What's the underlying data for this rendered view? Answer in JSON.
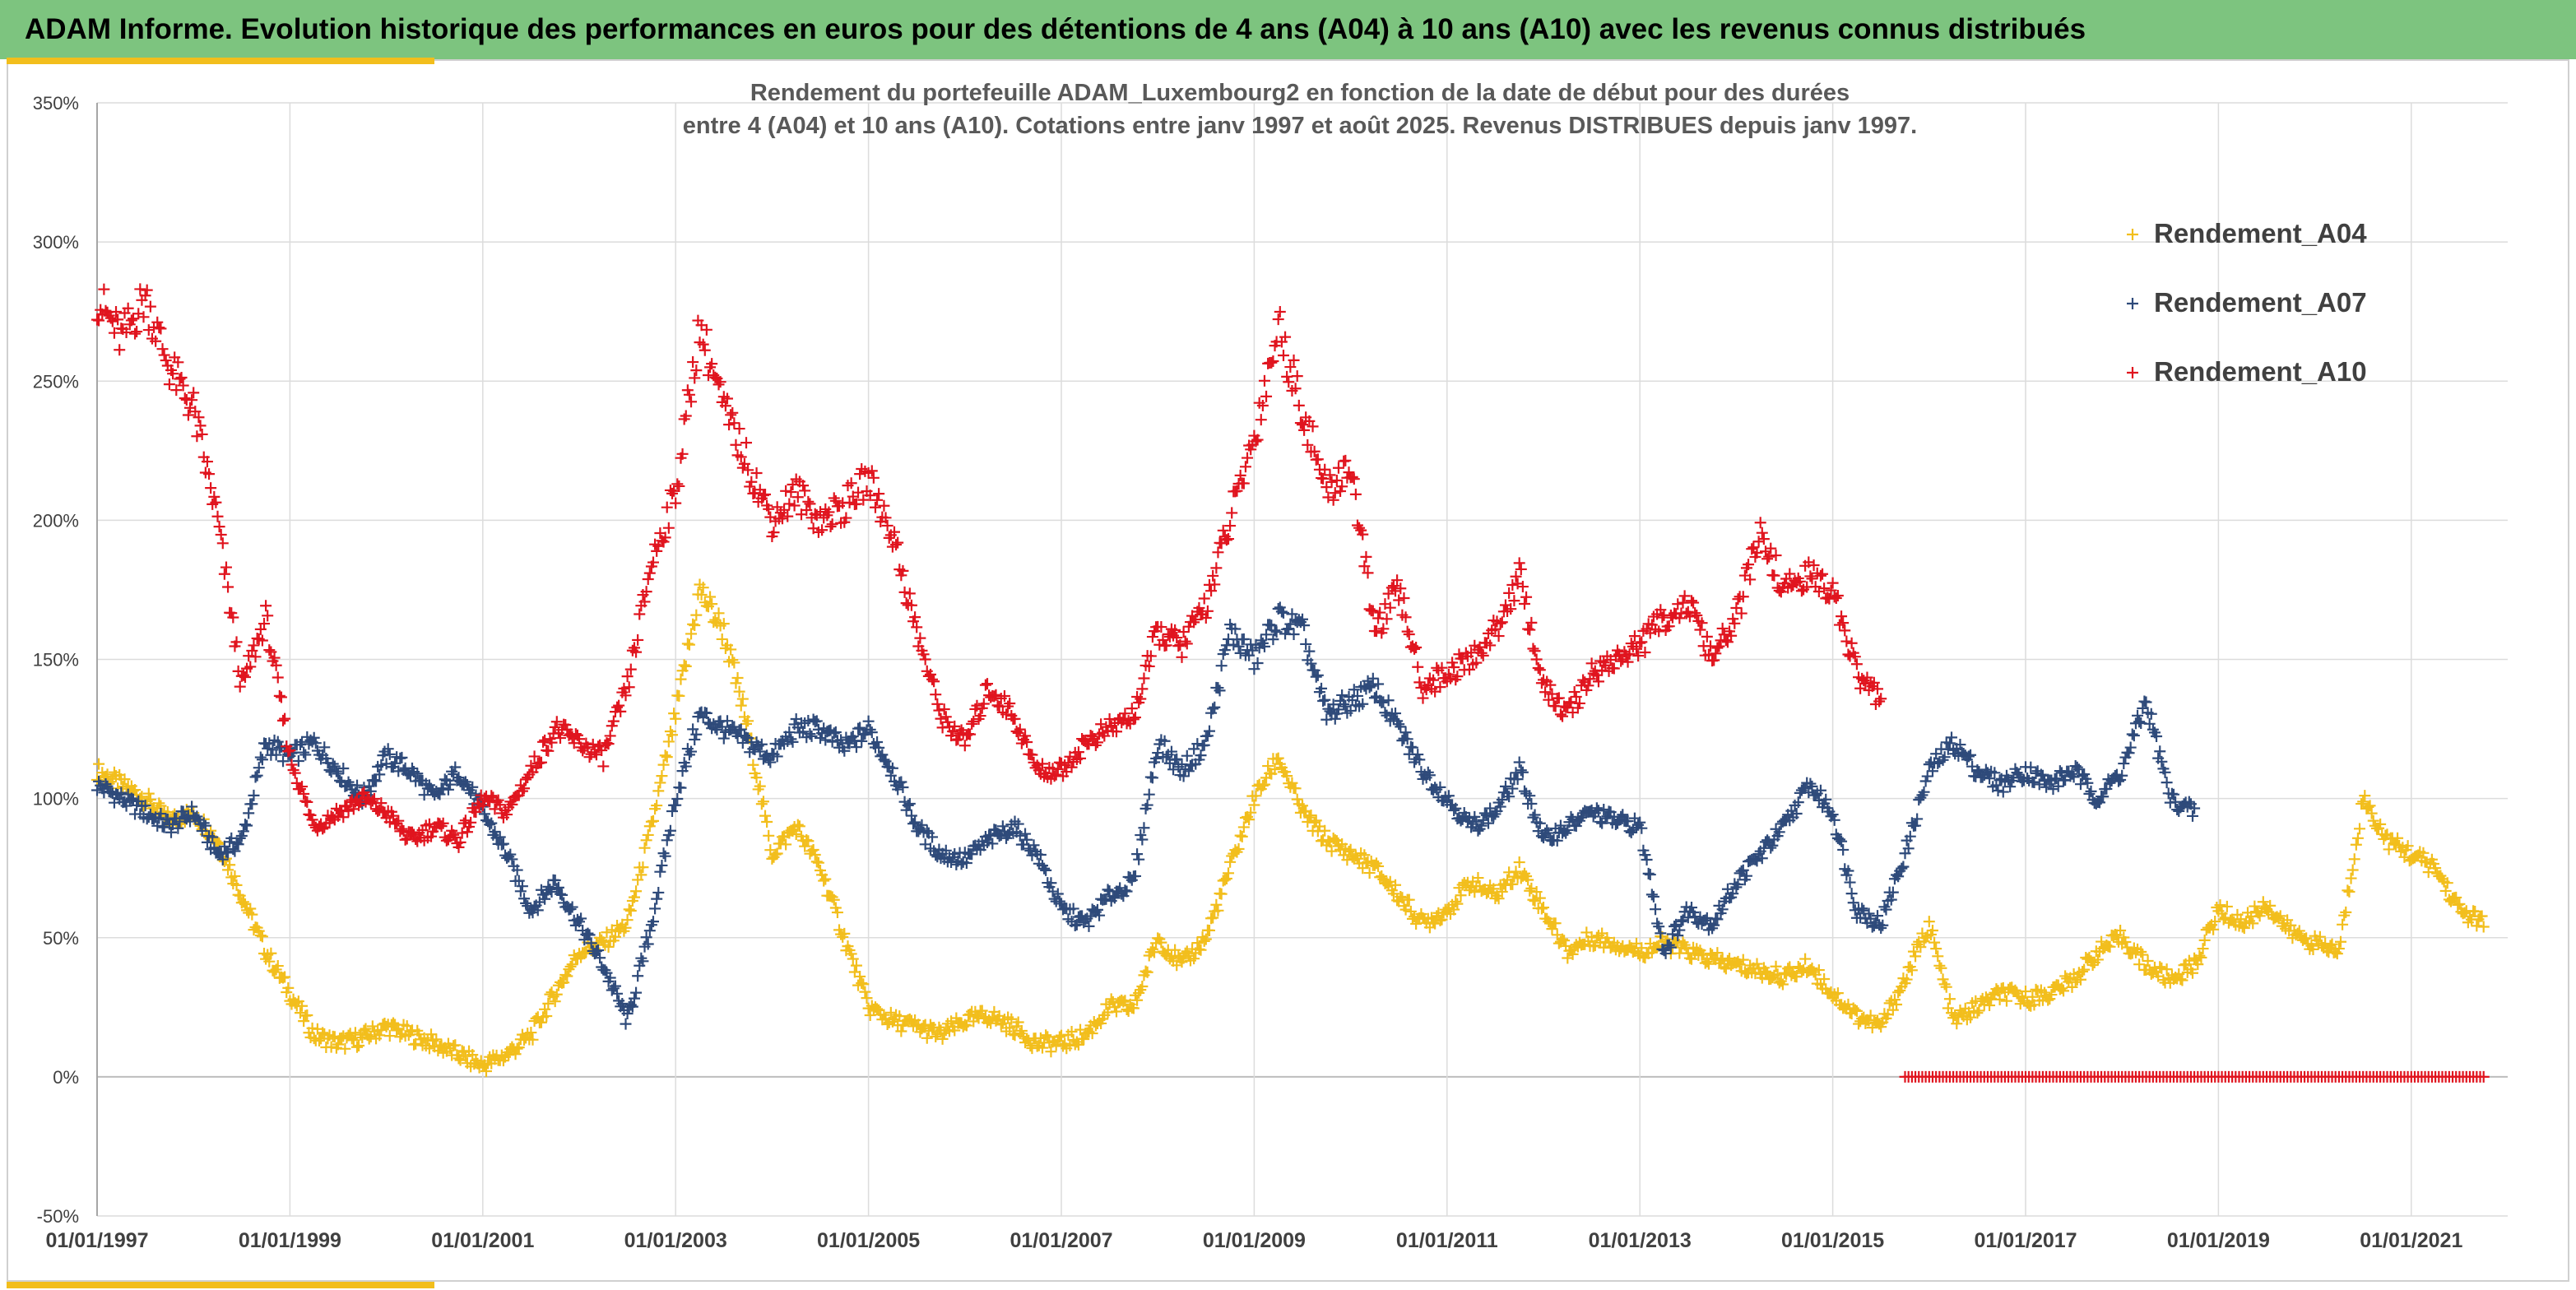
{
  "header": {
    "banner_title": "ADAM Informe. Evolution historique des performances en euros pour des détentions de 4 ans (A04) à 10 ans (A10) avec les revenus connus distribués"
  },
  "chart_data": {
    "type": "scatter",
    "title_lines": [
      "Rendement du portefeuille ADAM_Luxembourg2  en fonction de la date de début pour des durées",
      "entre 4 (A04) et 10 ans (A10). Cotations entre janv 1997 et août 2025. Revenus DISTRIBUES depuis janv 1997."
    ],
    "xlabel": "",
    "ylabel": "",
    "x_range": [
      "1997-01-01",
      "2021-12-31"
    ],
    "x_tick_labels": [
      "01/01/1997",
      "01/01/1999",
      "01/01/2001",
      "01/01/2003",
      "01/01/2005",
      "01/01/2007",
      "01/01/2009",
      "01/01/2011",
      "01/01/2013",
      "01/01/2015",
      "01/01/2017",
      "01/01/2019",
      "01/01/2021"
    ],
    "y_range": [
      -50,
      350
    ],
    "y_ticks": [
      -50,
      0,
      50,
      100,
      150,
      200,
      250,
      300,
      350
    ],
    "y_tick_labels": [
      "-50%",
      "0%",
      "50%",
      "100%",
      "150%",
      "200%",
      "250%",
      "300%",
      "350%"
    ],
    "grid": true,
    "marker": "+",
    "legend_position": "top-right",
    "series": [
      {
        "name": "Rendement_A04",
        "color": "#f2be1c",
        "points": [
          [
            "1997-01",
            110
          ],
          [
            "1997-04",
            105
          ],
          [
            "1997-07",
            100
          ],
          [
            "1997-10",
            92
          ],
          [
            "1998-01",
            95
          ],
          [
            "1998-04",
            85
          ],
          [
            "1998-07",
            65
          ],
          [
            "1998-10",
            45
          ],
          [
            "1999-01",
            30
          ],
          [
            "1999-04",
            15
          ],
          [
            "1999-07",
            12
          ],
          [
            "1999-10",
            14
          ],
          [
            "2000-01",
            18
          ],
          [
            "2000-04",
            15
          ],
          [
            "2000-07",
            12
          ],
          [
            "2000-10",
            8
          ],
          [
            "2001-01",
            4
          ],
          [
            "2001-04",
            8
          ],
          [
            "2001-07",
            15
          ],
          [
            "2001-10",
            30
          ],
          [
            "2002-01",
            45
          ],
          [
            "2002-04",
            48
          ],
          [
            "2002-07",
            55
          ],
          [
            "2002-10",
            90
          ],
          [
            "2003-01",
            130
          ],
          [
            "2003-04",
            175
          ],
          [
            "2003-07",
            160
          ],
          [
            "2003-10",
            125
          ],
          [
            "2004-01",
            80
          ],
          [
            "2004-04",
            90
          ],
          [
            "2004-07",
            75
          ],
          [
            "2004-10",
            50
          ],
          [
            "2005-01",
            25
          ],
          [
            "2005-04",
            20
          ],
          [
            "2005-07",
            18
          ],
          [
            "2005-10",
            15
          ],
          [
            "2006-01",
            20
          ],
          [
            "2006-04",
            22
          ],
          [
            "2006-07",
            18
          ],
          [
            "2006-10",
            12
          ],
          [
            "2007-01",
            12
          ],
          [
            "2007-04",
            15
          ],
          [
            "2007-07",
            25
          ],
          [
            "2007-10",
            25
          ],
          [
            "2008-01",
            50
          ],
          [
            "2008-04",
            40
          ],
          [
            "2008-07",
            50
          ],
          [
            "2008-10",
            75
          ],
          [
            "2009-01",
            100
          ],
          [
            "2009-04",
            115
          ],
          [
            "2009-07",
            95
          ],
          [
            "2009-10",
            85
          ],
          [
            "2010-01",
            80
          ],
          [
            "2010-04",
            75
          ],
          [
            "2010-07",
            65
          ],
          [
            "2010-10",
            55
          ],
          [
            "2011-01",
            60
          ],
          [
            "2011-04",
            70
          ],
          [
            "2011-07",
            65
          ],
          [
            "2011-10",
            75
          ],
          [
            "2012-01",
            60
          ],
          [
            "2012-04",
            45
          ],
          [
            "2012-07",
            50
          ],
          [
            "2012-10",
            48
          ],
          [
            "2013-01",
            45
          ],
          [
            "2013-04",
            48
          ],
          [
            "2013-07",
            45
          ],
          [
            "2013-10",
            42
          ],
          [
            "2014-01",
            40
          ],
          [
            "2014-04",
            38
          ],
          [
            "2014-07",
            36
          ],
          [
            "2014-10",
            40
          ],
          [
            "2015-01",
            30
          ],
          [
            "2015-04",
            22
          ],
          [
            "2015-07",
            18
          ],
          [
            "2015-10",
            35
          ],
          [
            "2016-01",
            55
          ],
          [
            "2016-04",
            20
          ],
          [
            "2016-07",
            25
          ],
          [
            "2016-10",
            30
          ],
          [
            "2017-01",
            28
          ],
          [
            "2017-04",
            30
          ],
          [
            "2017-07",
            35
          ],
          [
            "2017-10",
            45
          ],
          [
            "2018-01",
            50
          ],
          [
            "2018-04",
            40
          ],
          [
            "2018-07",
            35
          ],
          [
            "2018-10",
            40
          ],
          [
            "2019-01",
            60
          ],
          [
            "2019-04",
            55
          ],
          [
            "2019-07",
            62
          ],
          [
            "2019-10",
            52
          ],
          [
            "2020-01",
            48
          ],
          [
            "2020-04",
            45
          ],
          [
            "2020-07",
            100
          ],
          [
            "2020-10",
            85
          ],
          [
            "2021-01",
            80
          ],
          [
            "2021-04",
            75
          ],
          [
            "2021-07",
            60
          ],
          [
            "2021-10",
            55
          ]
        ]
      },
      {
        "name": "Rendement_A07",
        "color": "#2e4a7a",
        "points": [
          [
            "1997-01",
            105
          ],
          [
            "1997-04",
            100
          ],
          [
            "1997-07",
            95
          ],
          [
            "1997-10",
            90
          ],
          [
            "1998-01",
            95
          ],
          [
            "1998-04",
            80
          ],
          [
            "1998-07",
            85
          ],
          [
            "1998-10",
            120
          ],
          [
            "1999-01",
            115
          ],
          [
            "1999-04",
            120
          ],
          [
            "1999-07",
            110
          ],
          [
            "1999-10",
            100
          ],
          [
            "2000-01",
            115
          ],
          [
            "2000-04",
            110
          ],
          [
            "2000-07",
            100
          ],
          [
            "2000-10",
            110
          ],
          [
            "2001-01",
            95
          ],
          [
            "2001-04",
            80
          ],
          [
            "2001-07",
            60
          ],
          [
            "2001-10",
            70
          ],
          [
            "2002-01",
            55
          ],
          [
            "2002-04",
            40
          ],
          [
            "2002-07",
            20
          ],
          [
            "2002-10",
            55
          ],
          [
            "2003-01",
            100
          ],
          [
            "2003-04",
            130
          ],
          [
            "2003-07",
            125
          ],
          [
            "2003-10",
            120
          ],
          [
            "2004-01",
            115
          ],
          [
            "2004-04",
            125
          ],
          [
            "2004-07",
            125
          ],
          [
            "2004-10",
            118
          ],
          [
            "2005-01",
            125
          ],
          [
            "2005-04",
            110
          ],
          [
            "2005-07",
            90
          ],
          [
            "2005-10",
            80
          ],
          [
            "2006-01",
            78
          ],
          [
            "2006-04",
            85
          ],
          [
            "2006-07",
            90
          ],
          [
            "2006-10",
            80
          ],
          [
            "2007-01",
            60
          ],
          [
            "2007-04",
            55
          ],
          [
            "2007-07",
            65
          ],
          [
            "2007-10",
            70
          ],
          [
            "2008-01",
            120
          ],
          [
            "2008-04",
            110
          ],
          [
            "2008-07",
            120
          ],
          [
            "2008-10",
            160
          ],
          [
            "2009-01",
            150
          ],
          [
            "2009-04",
            165
          ],
          [
            "2009-07",
            160
          ],
          [
            "2009-10",
            130
          ],
          [
            "2010-01",
            135
          ],
          [
            "2010-04",
            140
          ],
          [
            "2010-07",
            125
          ],
          [
            "2010-10",
            110
          ],
          [
            "2011-01",
            100
          ],
          [
            "2011-04",
            90
          ],
          [
            "2011-07",
            95
          ],
          [
            "2011-10",
            110
          ],
          [
            "2012-01",
            85
          ],
          [
            "2012-04",
            90
          ],
          [
            "2012-07",
            95
          ],
          [
            "2012-10",
            92
          ],
          [
            "2013-01",
            90
          ],
          [
            "2013-04",
            45
          ],
          [
            "2013-07",
            60
          ],
          [
            "2013-10",
            55
          ],
          [
            "2014-01",
            70
          ],
          [
            "2014-04",
            80
          ],
          [
            "2014-07",
            90
          ],
          [
            "2014-10",
            105
          ],
          [
            "2015-01",
            95
          ],
          [
            "2015-04",
            60
          ],
          [
            "2015-07",
            55
          ],
          [
            "2015-10",
            80
          ],
          [
            "2016-01",
            110
          ],
          [
            "2016-04",
            120
          ],
          [
            "2016-07",
            110
          ],
          [
            "2016-10",
            105
          ],
          [
            "2017-01",
            110
          ],
          [
            "2017-04",
            105
          ],
          [
            "2017-07",
            110
          ],
          [
            "2017-10",
            100
          ],
          [
            "2018-01",
            110
          ],
          [
            "2018-04",
            135
          ],
          [
            "2018-07",
            100
          ],
          [
            "2018-10",
            95
          ]
        ]
      },
      {
        "name": "Rendement_A10",
        "color": "#e0141e",
        "points": [
          [
            "1997-01",
            280
          ],
          [
            "1997-04",
            265
          ],
          [
            "1997-07",
            280
          ],
          [
            "1997-10",
            255
          ],
          [
            "1998-01",
            240
          ],
          [
            "1998-04",
            200
          ],
          [
            "1998-07",
            140
          ],
          [
            "1998-10",
            165
          ],
          [
            "1999-01",
            115
          ],
          [
            "1999-04",
            90
          ],
          [
            "1999-07",
            95
          ],
          [
            "1999-10",
            100
          ],
          [
            "2000-01",
            95
          ],
          [
            "2000-04",
            85
          ],
          [
            "2000-07",
            90
          ],
          [
            "2000-10",
            85
          ],
          [
            "2001-01",
            100
          ],
          [
            "2001-04",
            95
          ],
          [
            "2001-07",
            110
          ],
          [
            "2001-10",
            125
          ],
          [
            "2002-01",
            120
          ],
          [
            "2002-04",
            115
          ],
          [
            "2002-07",
            140
          ],
          [
            "2002-10",
            185
          ],
          [
            "2003-01",
            210
          ],
          [
            "2003-04",
            270
          ],
          [
            "2003-07",
            240
          ],
          [
            "2003-10",
            220
          ],
          [
            "2004-01",
            200
          ],
          [
            "2004-04",
            210
          ],
          [
            "2004-07",
            200
          ],
          [
            "2004-10",
            205
          ],
          [
            "2005-01",
            215
          ],
          [
            "2005-04",
            195
          ],
          [
            "2005-07",
            160
          ],
          [
            "2005-10",
            130
          ],
          [
            "2006-01",
            120
          ],
          [
            "2006-04",
            140
          ],
          [
            "2006-07",
            130
          ],
          [
            "2006-10",
            110
          ],
          [
            "2007-01",
            110
          ],
          [
            "2007-04",
            120
          ],
          [
            "2007-07",
            125
          ],
          [
            "2007-10",
            130
          ],
          [
            "2008-01",
            160
          ],
          [
            "2008-04",
            155
          ],
          [
            "2008-07",
            170
          ],
          [
            "2008-10",
            200
          ],
          [
            "2009-01",
            230
          ],
          [
            "2009-04",
            270
          ],
          [
            "2009-07",
            240
          ],
          [
            "2009-10",
            210
          ],
          [
            "2010-01",
            220
          ],
          [
            "2010-04",
            160
          ],
          [
            "2010-07",
            175
          ],
          [
            "2010-10",
            140
          ],
          [
            "2011-01",
            145
          ],
          [
            "2011-04",
            150
          ],
          [
            "2011-07",
            160
          ],
          [
            "2011-10",
            180
          ],
          [
            "2012-01",
            140
          ],
          [
            "2012-04",
            130
          ],
          [
            "2012-07",
            145
          ],
          [
            "2012-10",
            150
          ],
          [
            "2013-01",
            155
          ],
          [
            "2013-04",
            165
          ],
          [
            "2013-07",
            170
          ],
          [
            "2013-10",
            150
          ],
          [
            "2014-01",
            165
          ],
          [
            "2014-04",
            195
          ],
          [
            "2014-07",
            175
          ],
          [
            "2014-10",
            180
          ],
          [
            "2015-01",
            175
          ],
          [
            "2015-04",
            145
          ],
          [
            "2015-07",
            135
          ]
        ]
      },
      {
        "name": "Rendement_A10",
        "color": "#e0141e",
        "points": [
          [
            "2015-10",
            0
          ],
          [
            "2016-04",
            0
          ],
          [
            "2016-10",
            0
          ],
          [
            "2017-04",
            0
          ],
          [
            "2017-10",
            0
          ],
          [
            "2018-04",
            0
          ],
          [
            "2018-10",
            0
          ],
          [
            "2019-04",
            0
          ],
          [
            "2019-10",
            0
          ],
          [
            "2020-04",
            0
          ],
          [
            "2020-10",
            0
          ],
          [
            "2021-04",
            0
          ],
          [
            "2021-10",
            0
          ]
        ]
      }
    ]
  }
}
